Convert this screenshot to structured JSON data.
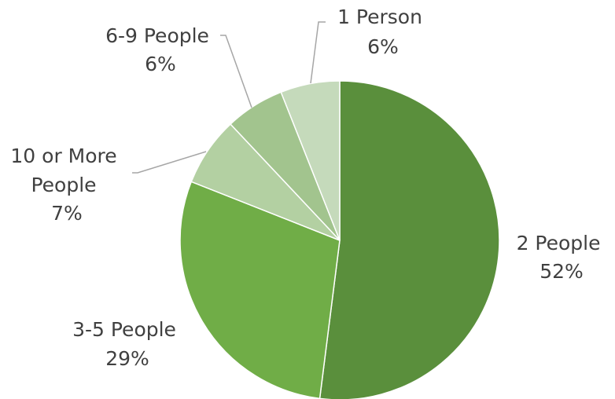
{
  "chart_data": {
    "type": "pie",
    "start_angle_deg": 0,
    "direction": "clockwise",
    "slices": [
      {
        "name": "2 People",
        "value": 52,
        "percent_label": "52%",
        "color": "#5a8f3c"
      },
      {
        "name": "3-5 People",
        "value": 29,
        "percent_label": "29%",
        "color": "#70ad47"
      },
      {
        "name": "10 or More People",
        "value": 7,
        "percent_label": "7%",
        "color": "#b3d0a2"
      },
      {
        "name": "6-9 People",
        "value": 6,
        "percent_label": "6%",
        "color": "#a2c48e"
      },
      {
        "name": "1 Person",
        "value": 6,
        "percent_label": "6%",
        "color": "#c5dabb"
      }
    ]
  }
}
